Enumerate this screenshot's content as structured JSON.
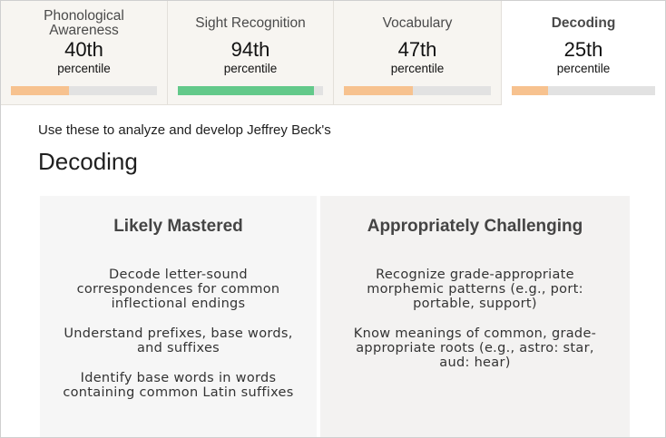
{
  "tabs": [
    {
      "label": "Phonological Awareness",
      "value": "40th",
      "unit": "percentile",
      "progress": 0.4,
      "color": "#f7c28f",
      "active": false
    },
    {
      "label": "Sight Recognition",
      "value": "94th",
      "unit": "percentile",
      "progress": 0.94,
      "color": "#63c98a",
      "active": false
    },
    {
      "label": "Vocabulary",
      "value": "47th",
      "unit": "percentile",
      "progress": 0.47,
      "color": "#f7c28f",
      "active": false
    },
    {
      "label": "Decoding",
      "value": "25th",
      "unit": "percentile",
      "progress": 0.25,
      "color": "#f7c28f",
      "active": true
    }
  ],
  "intro": "Use these to analyze and develop Jeffrey Beck's",
  "section_title": "Decoding",
  "cards": {
    "likely_mastered": {
      "title": "Likely Mastered",
      "items": [
        "Decode letter-sound correspondences for common inflectional endings",
        "Understand prefixes, base words, and suffixes",
        "Identify base words in words containing common Latin suffixes"
      ]
    },
    "appropriately_challenging": {
      "title": "Appropriately Challenging",
      "items": [
        "Recognize grade-appropriate morphemic patterns (e.g., port: portable, support)",
        "Know meanings of common, grade-appropriate roots (e.g., astro: star, aud: hear)"
      ]
    }
  }
}
